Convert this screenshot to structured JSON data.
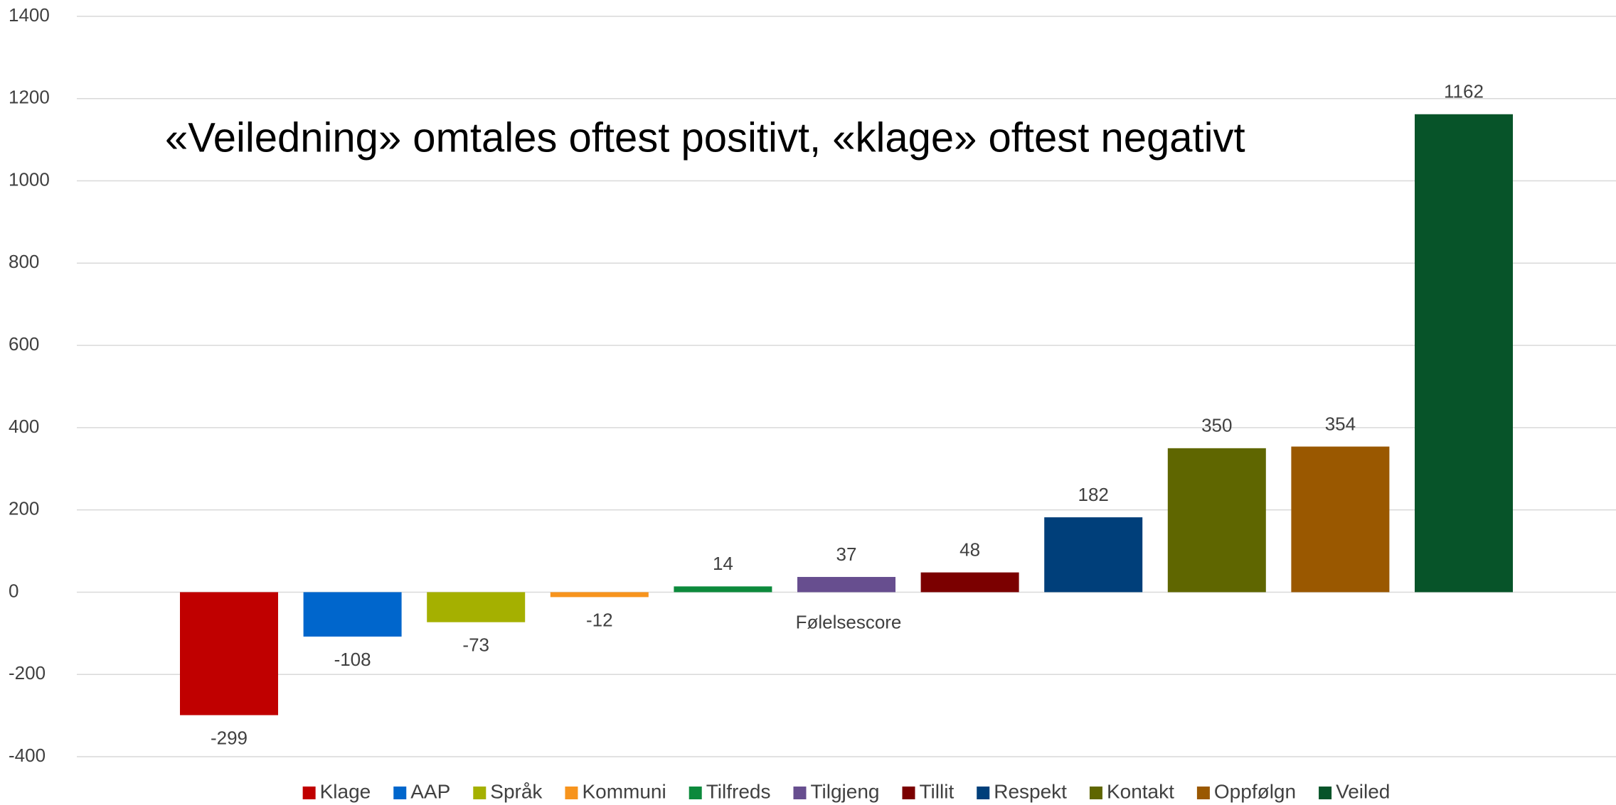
{
  "chart_data": {
    "type": "bar",
    "title": "«Veiledning» omtales oftest positivt, «klage» oftest negativt",
    "categories": [
      "Følelsescore"
    ],
    "series": [
      {
        "name": "Klage",
        "color": "#c00000",
        "values": [
          -299
        ]
      },
      {
        "name": "AAP",
        "color": "#0066cc",
        "values": [
          -108
        ]
      },
      {
        "name": "Språk",
        "color": "#a5b000",
        "values": [
          -73
        ]
      },
      {
        "name": "Kommuni",
        "color": "#f7941d",
        "values": [
          -12
        ]
      },
      {
        "name": "Tilfreds",
        "color": "#0c8a3c",
        "values": [
          14
        ]
      },
      {
        "name": "Tilgjeng",
        "color": "#674e8f",
        "values": [
          37
        ]
      },
      {
        "name": "Tillit",
        "color": "#7b0000",
        "values": [
          48
        ]
      },
      {
        "name": "Respekt",
        "color": "#003f7a",
        "values": [
          182
        ]
      },
      {
        "name": "Kontakt",
        "color": "#5f6600",
        "values": [
          350
        ]
      },
      {
        "name": "Oppfølgn",
        "color": "#9a5800",
        "values": [
          354
        ]
      },
      {
        "name": "Veiled",
        "color": "#075429",
        "values": [
          1162
        ]
      }
    ],
    "ylim": [
      -400,
      1400
    ],
    "yticks": [
      -400,
      -200,
      0,
      200,
      400,
      600,
      800,
      1000,
      1200,
      1400
    ],
    "grid": true,
    "legend": "bottom"
  }
}
